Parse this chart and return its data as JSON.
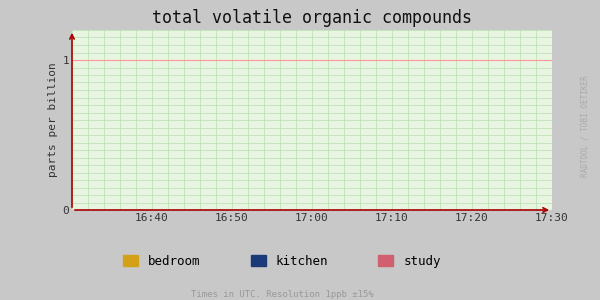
{
  "title": "total volatile organic compounds",
  "ylabel": "parts per billion",
  "xlabel_note": "Times in UTC. Resolution 1ppb ±15%",
  "watermark": "RADTOOL / TOBI OETIKER",
  "bg_color": "#e8f5e0",
  "outer_bg": "#c8c8c8",
  "grid_major_color": "#ff9999",
  "grid_minor_color": "#b8ddb0",
  "axis_color": "#aa0000",
  "x_ticks": [
    "16:40",
    "16:50",
    "17:00",
    "17:10",
    "17:20",
    "17:30"
  ],
  "x_tick_positions": [
    10,
    20,
    30,
    40,
    50,
    60
  ],
  "x_min": 0,
  "x_max": 60,
  "y_min": 0,
  "y_max": 1.2,
  "y_ticks": [
    0,
    1
  ],
  "legend_items": [
    {
      "label": "bedroom",
      "color": "#d4a017"
    },
    {
      "label": "kitchen",
      "color": "#1a3a7a"
    },
    {
      "label": "study",
      "color": "#d06070"
    }
  ],
  "title_fontsize": 12,
  "tick_fontsize": 8,
  "legend_fontsize": 9,
  "note_fontsize": 6.5,
  "watermark_fontsize": 5.5
}
